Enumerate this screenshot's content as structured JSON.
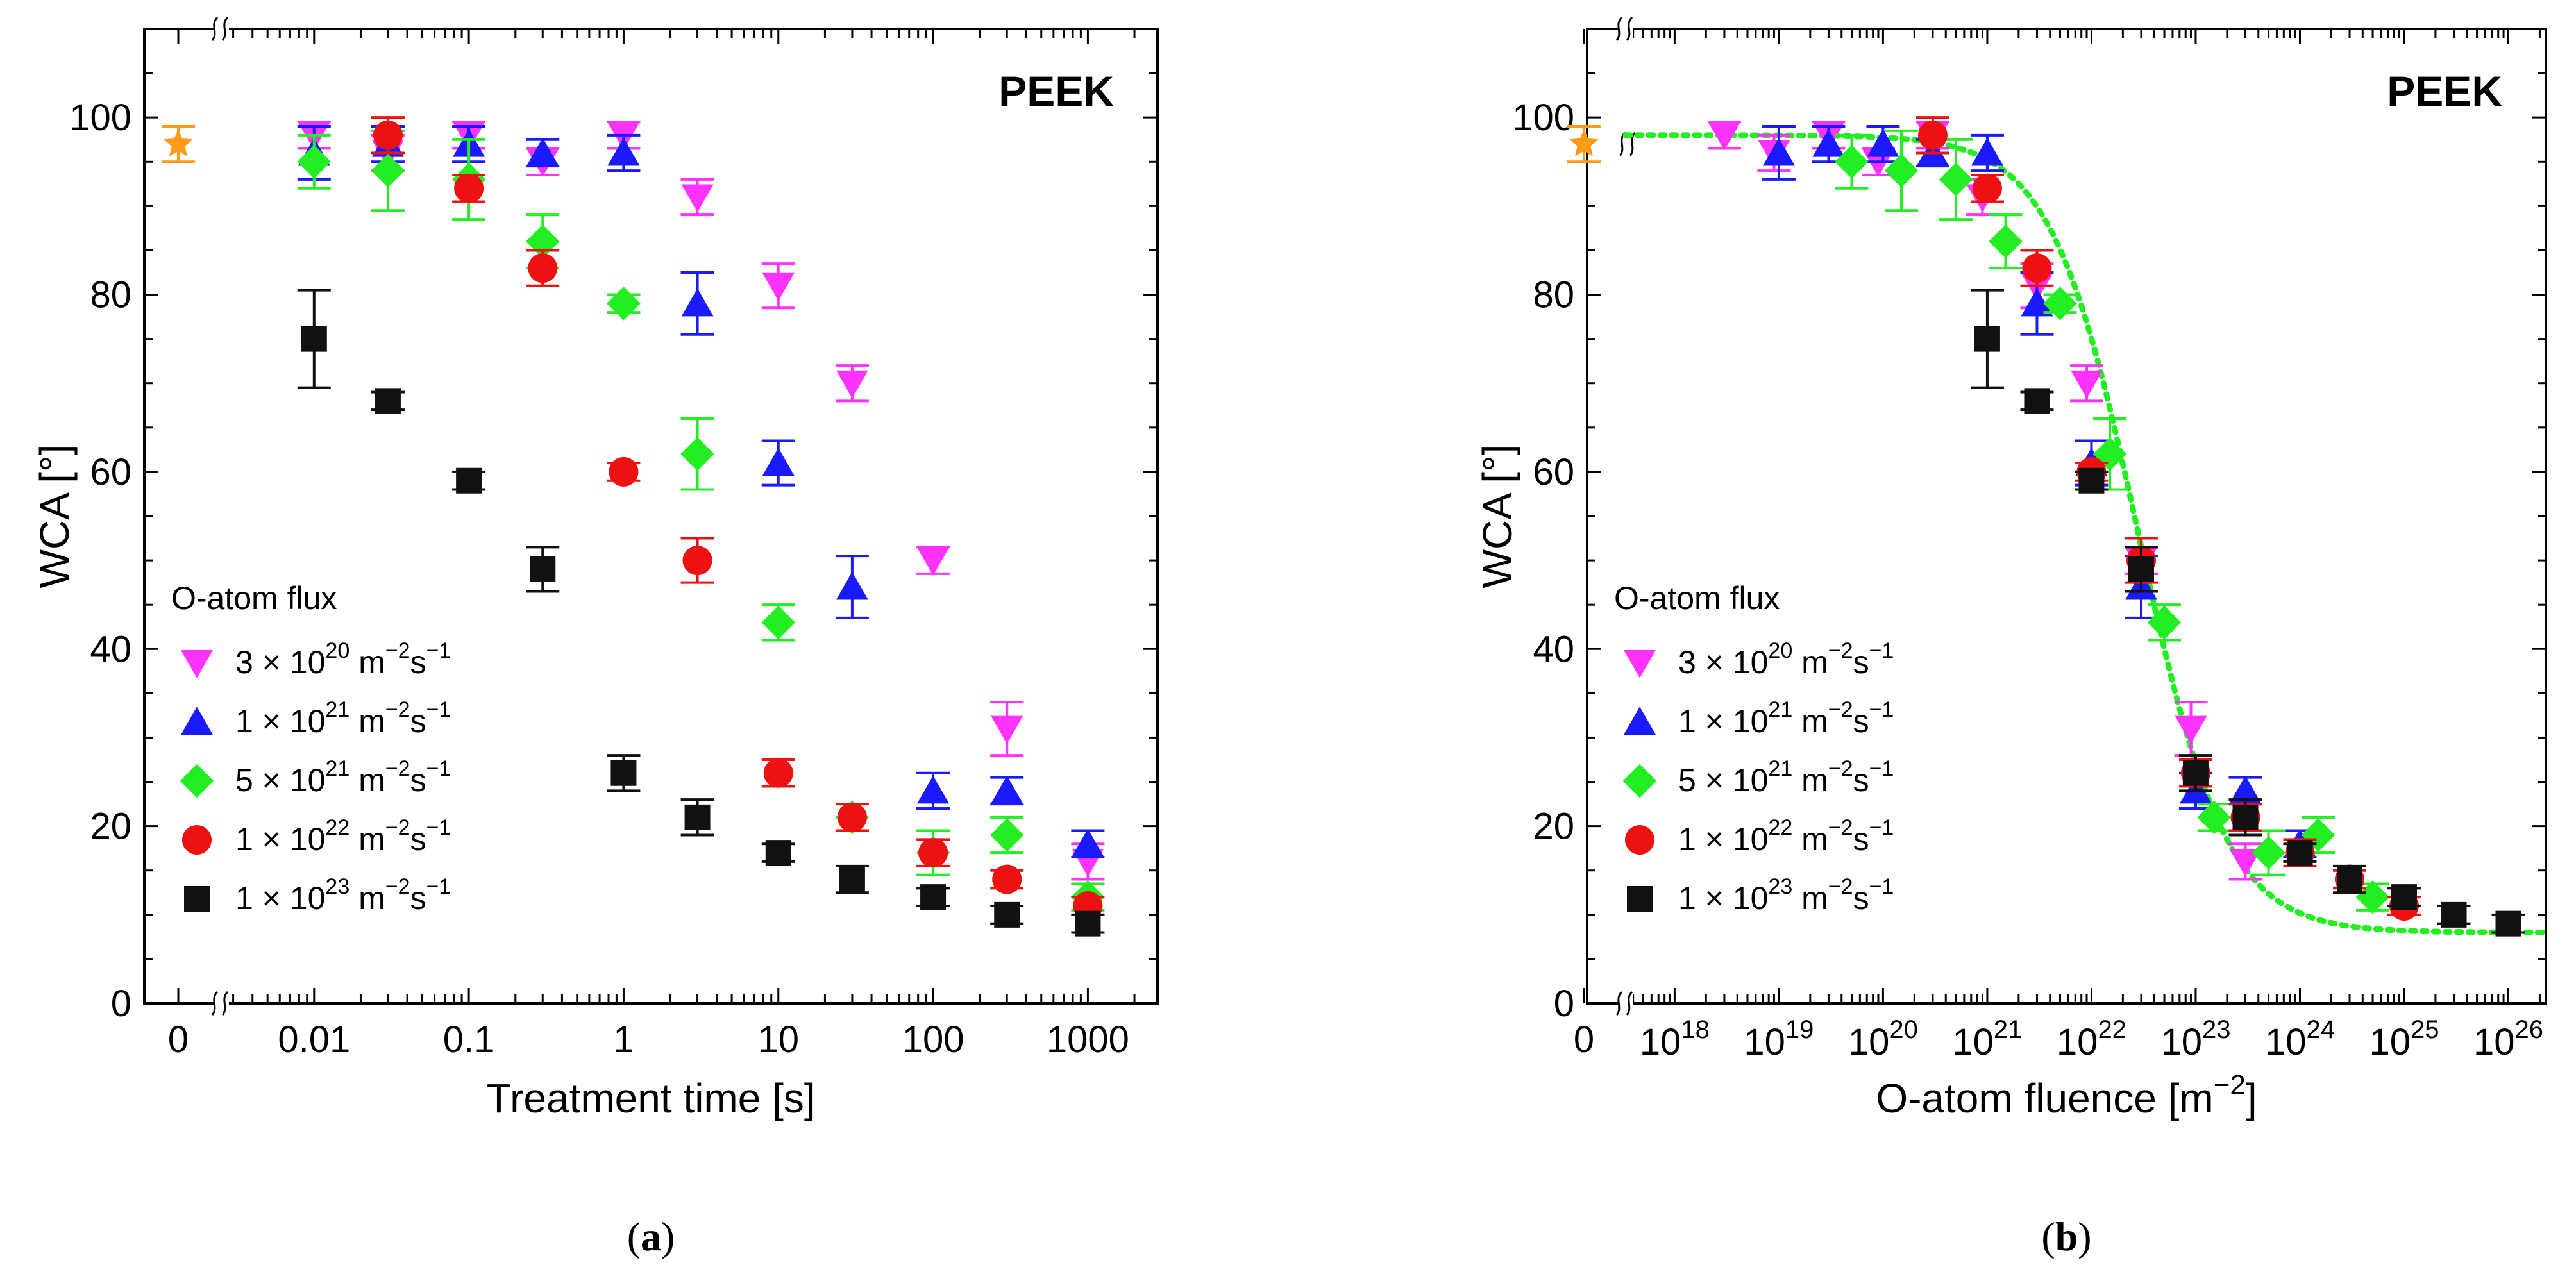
{
  "chart_data": [
    {
      "type": "scatter",
      "panel_label": "a",
      "title": "PEEK",
      "xlabel": "Treatment time [s]",
      "ylabel": "WCA [°]",
      "xscale": "log",
      "x_ticks": [
        "0",
        "0.01",
        "0.1",
        "1",
        "10",
        "100",
        "1000"
      ],
      "y_ticks": [
        "0",
        "20",
        "40",
        "60",
        "80",
        "100"
      ],
      "ylim": [
        0,
        110
      ],
      "legend_title": "O-atom flux",
      "reference": {
        "x": "0",
        "y": 97,
        "err": 2,
        "color": "#ff9a1a",
        "marker": "star"
      },
      "series": [
        {
          "name": "3 × 10^20 m^-2 s^-1",
          "mant": "3",
          "exp1": "20",
          "unit": "m",
          "exp2": "−2",
          "unit2": "s",
          "exp3": "−1",
          "color": "#ff33ff",
          "marker": "triangle-down",
          "x": [
            0.01,
            0.03,
            0.1,
            0.3,
            1,
            3,
            10,
            30,
            100,
            300,
            1000
          ],
          "y": [
            98,
            96,
            98,
            95,
            98,
            91,
            81,
            70,
            50,
            31,
            16
          ],
          "err": [
            1.5,
            2,
            1.5,
            1.5,
            1.5,
            2,
            2.5,
            2,
            1.5,
            3,
            2
          ]
        },
        {
          "name": "1 × 10^21 m^-2 s^-1",
          "mant": "1",
          "exp1": "21",
          "unit": "m",
          "exp2": "−2",
          "unit2": "s",
          "exp3": "−1",
          "color": "#1a1aff",
          "marker": "triangle-up",
          "x": [
            0.01,
            0.03,
            0.1,
            0.3,
            1,
            3,
            10,
            30,
            100,
            300,
            1000
          ],
          "y": [
            96,
            97,
            97,
            96,
            96,
            79,
            61,
            47,
            24,
            24,
            18
          ],
          "err": [
            3,
            2,
            2,
            1.5,
            2,
            3.5,
            2.5,
            3.5,
            2,
            1.5,
            1.5
          ]
        },
        {
          "name": "5 × 10^21 m^-2 s^-1",
          "mant": "5",
          "exp1": "21",
          "unit": "m",
          "exp2": "−2",
          "unit2": "s",
          "exp3": "−1",
          "color": "#22ee22",
          "marker": "diamond",
          "x": [
            0.01,
            0.03,
            0.1,
            0.3,
            1,
            3,
            10,
            30,
            100,
            300,
            1000
          ],
          "y": [
            95,
            94,
            93,
            86,
            79,
            62,
            43,
            21,
            17,
            19,
            12
          ],
          "err": [
            3,
            4.5,
            4.5,
            3,
            1,
            4,
            2,
            1.5,
            2.5,
            2,
            1.5
          ]
        },
        {
          "name": "1 × 10^22 m^-2 s^-1",
          "mant": "1",
          "exp1": "22",
          "unit": "m",
          "exp2": "−2",
          "unit2": "s",
          "exp3": "−1",
          "color": "#ee1111",
          "marker": "circle",
          "x": [
            0.03,
            0.1,
            0.3,
            1,
            3,
            10,
            30,
            100,
            300,
            1000
          ],
          "y": [
            98,
            92,
            83,
            60,
            50,
            26,
            21,
            17,
            14,
            11
          ],
          "err": [
            2,
            1.5,
            2,
            1,
            2.5,
            1.5,
            1.5,
            1.5,
            1,
            1
          ]
        },
        {
          "name": "1 × 10^23 m^-2 s^-1",
          "mant": "1",
          "exp1": "23",
          "unit": "m",
          "exp2": "−2",
          "unit2": "s",
          "exp3": "−1",
          "color": "#111111",
          "marker": "square",
          "x": [
            0.01,
            0.03,
            0.1,
            0.3,
            1,
            3,
            10,
            30,
            100,
            300,
            1000
          ],
          "y": [
            75,
            68,
            59,
            49,
            26,
            21,
            17,
            14,
            12,
            10,
            9
          ],
          "err": [
            5.5,
            1,
            1,
            2.5,
            2,
            2,
            1,
            1.5,
            1,
            1,
            1
          ]
        }
      ]
    },
    {
      "type": "scatter",
      "panel_label": "b",
      "title": "PEEK",
      "xlabel": "O-atom fluence [m",
      "xlabel_sup": "−2",
      "xlabel_end": "]",
      "ylabel": "WCA [°]",
      "xscale": "log",
      "x_ticks": [
        "0",
        "18",
        "19",
        "20",
        "21",
        "22",
        "23",
        "24",
        "25",
        "26"
      ],
      "x_tick_base": "10",
      "y_ticks": [
        "0",
        "20",
        "40",
        "60",
        "80",
        "100"
      ],
      "ylim": [
        0,
        110
      ],
      "legend_title": "O-atom flux",
      "reference": {
        "x": "0",
        "y": 97,
        "err": 2,
        "color": "#ff9a1a",
        "marker": "star"
      },
      "fit_curve": {
        "color": "#22ee22",
        "style": "dotted",
        "top": 98,
        "bottom": 8,
        "center_log10": 22.45,
        "width": 0.42
      },
      "series": [
        {
          "name": "3 × 10^20 m^-2 s^-1",
          "mant": "3",
          "exp1": "20",
          "unit": "m",
          "exp2": "−2",
          "unit2": "s",
          "exp3": "−1",
          "color": "#ff33ff",
          "marker": "triangle-down",
          "x": [
            3e+18,
            9e+18,
            3e+19,
            9e+19,
            3e+20,
            9e+20,
            3e+21,
            9e+21,
            3e+22,
            9e+22,
            3e+23
          ],
          "y": [
            98,
            96,
            98,
            95,
            98,
            91,
            81,
            70,
            50,
            31,
            16
          ],
          "err": [
            1.5,
            2,
            1.5,
            1.5,
            1.5,
            2,
            2.5,
            2,
            1.5,
            3,
            2
          ]
        },
        {
          "name": "1 × 10^21 m^-2 s^-1",
          "mant": "1",
          "exp1": "21",
          "unit": "m",
          "exp2": "−2",
          "unit2": "s",
          "exp3": "−1",
          "color": "#1a1aff",
          "marker": "triangle-up",
          "x": [
            1e+19,
            3e+19,
            1e+20,
            3e+20,
            1e+21,
            3e+21,
            1e+22,
            3e+22,
            1e+23,
            3e+23,
            1e+24
          ],
          "y": [
            96,
            97,
            97,
            96,
            96,
            79,
            61,
            47,
            24,
            24,
            18
          ],
          "err": [
            3,
            2,
            2,
            1.5,
            2,
            3.5,
            2.5,
            3.5,
            2,
            1.5,
            1.5
          ]
        },
        {
          "name": "5 × 10^21 m^-2 s^-1",
          "mant": "5",
          "exp1": "21",
          "unit": "m",
          "exp2": "−2",
          "unit2": "s",
          "exp3": "−1",
          "color": "#22ee22",
          "marker": "diamond",
          "x": [
            5e+19,
            1.5e+20,
            5e+20,
            1.5e+21,
            5e+21,
            1.5e+22,
            5e+22,
            1.5e+23,
            5e+23,
            1.5e+24,
            5e+24
          ],
          "y": [
            95,
            94,
            93,
            86,
            79,
            62,
            43,
            21,
            17,
            19,
            12
          ],
          "err": [
            3,
            4.5,
            4.5,
            3,
            1,
            4,
            2,
            1.5,
            2.5,
            2,
            1.5
          ]
        },
        {
          "name": "1 × 10^22 m^-2 s^-1",
          "mant": "1",
          "exp1": "22",
          "unit": "m",
          "exp2": "−2",
          "unit2": "s",
          "exp3": "−1",
          "color": "#ee1111",
          "marker": "circle",
          "x": [
            3e+20,
            1e+21,
            3e+21,
            1e+22,
            3e+22,
            1e+23,
            3e+23,
            1e+24,
            3e+24,
            1e+25
          ],
          "y": [
            98,
            92,
            83,
            60,
            50,
            26,
            21,
            17,
            14,
            11
          ],
          "err": [
            2,
            1.5,
            2,
            1,
            2.5,
            1.5,
            1.5,
            1.5,
            1,
            1
          ]
        },
        {
          "name": "1 × 10^23 m^-2 s^-1",
          "mant": "1",
          "exp1": "23",
          "unit": "m",
          "exp2": "−2",
          "unit2": "s",
          "exp3": "−1",
          "color": "#111111",
          "marker": "square",
          "x": [
            1e+21,
            3e+21,
            1e+22,
            3e+22,
            1e+23,
            3e+23,
            1e+24,
            3e+24,
            1e+25,
            3e+25,
            1e+26
          ],
          "y": [
            75,
            68,
            59,
            49,
            26,
            21,
            17,
            14,
            12,
            10,
            9
          ],
          "err": [
            5.5,
            1,
            1,
            2.5,
            2,
            2,
            1,
            1.5,
            1,
            1,
            1
          ]
        }
      ]
    }
  ]
}
